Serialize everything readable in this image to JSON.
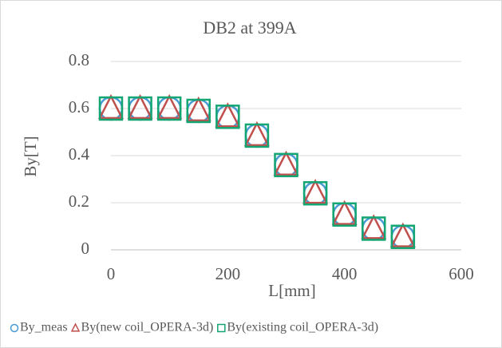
{
  "chart_data": {
    "type": "scatter",
    "title": "DB2 at 399A",
    "xlabel": "L[mm]",
    "ylabel": "By[T]",
    "xlim": [
      0,
      600
    ],
    "xticks": [
      0,
      200,
      400,
      600
    ],
    "ylim": [
      0,
      0.8
    ],
    "yticks": [
      0,
      0.2,
      0.4,
      0.6,
      0.8
    ],
    "grid": true,
    "legend": "bottom",
    "series": [
      {
        "name": "By_meas",
        "color": "#4a9ad4",
        "marker": "circle",
        "x": [
          0,
          50,
          100,
          150,
          200,
          250,
          300,
          350,
          400,
          450,
          500
        ],
        "values": [
          0.6,
          0.6,
          0.6,
          0.59,
          0.565,
          0.485,
          0.36,
          0.24,
          0.15,
          0.09,
          0.055
        ]
      },
      {
        "name": "By(new coil_OPERA-3d)",
        "color": "#c0504d",
        "marker": "triangle",
        "x": [
          0,
          50,
          100,
          150,
          200,
          250,
          300,
          350,
          400,
          450,
          500
        ],
        "values": [
          0.6,
          0.6,
          0.6,
          0.59,
          0.565,
          0.485,
          0.36,
          0.24,
          0.15,
          0.09,
          0.055
        ]
      },
      {
        "name": "By(existing coil_OPERA-3d)",
        "color": "#14a672",
        "marker": "square",
        "x": [
          0,
          50,
          100,
          150,
          200,
          250,
          300,
          350,
          400,
          450,
          500
        ],
        "values": [
          0.6,
          0.6,
          0.6,
          0.59,
          0.565,
          0.485,
          0.36,
          0.24,
          0.15,
          0.09,
          0.055
        ]
      }
    ]
  }
}
